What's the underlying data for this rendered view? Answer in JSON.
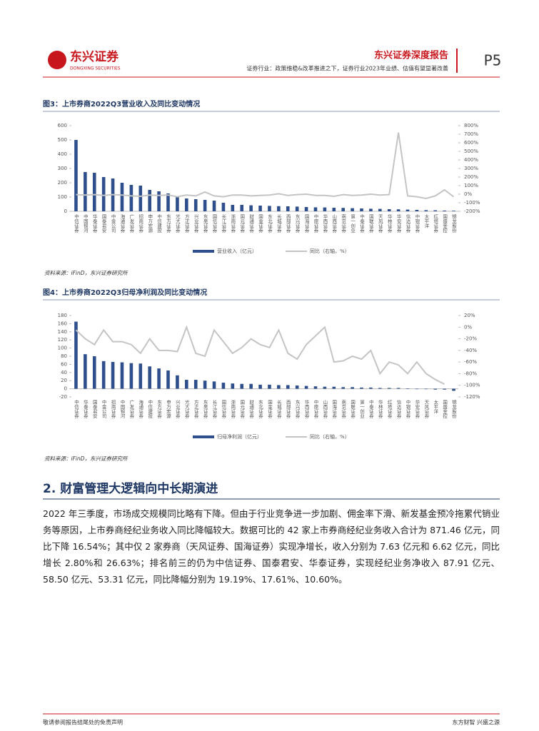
{
  "header": {
    "logo_cn": "东兴证券",
    "logo_en": "DONGXING SECURITIES",
    "report_type": "东兴证券深度报告",
    "subtitle": "证券行业：政策维稳&改革推进之下，证券行业2023年业绩、估值有望显著改善",
    "page": "P5"
  },
  "chart_data": [
    {
      "type": "bar_line",
      "title": "图3：上市券商2022Q3营业收入及同比变动情况",
      "source": "资料来源：iFinD，东兴证券研究所",
      "categories": [
        "中信证券",
        "中国银河",
        "华泰证券",
        "国泰君安",
        "中金公司",
        "海通证券",
        "广发证券",
        "招商证券",
        "申万宏源",
        "中信建投",
        "东方证券",
        "光大证券",
        "方正证券",
        "兴业证券",
        "东吴证券",
        "国信证券",
        "长江证券",
        "浙商证券",
        "国元证券",
        "财通证券",
        "国金证券",
        "东北证券",
        "长城证券",
        "西部证券",
        "东兴证券",
        "国海证券",
        "中原证券",
        "华西证券",
        "山西证券",
        "南京证券",
        "第一创业",
        "中泰证券",
        "国联证券",
        "天风证券",
        "华林证券",
        "华安证券",
        "信达证券",
        "中银证券",
        "太平洋",
        "红塔证券",
        "国盛金控",
        "锦龙股份"
      ],
      "series": [
        {
          "name": "营业收入（亿元）",
          "color": "#2f4f8c",
          "values": [
            500,
            275,
            270,
            240,
            230,
            200,
            185,
            180,
            150,
            140,
            125,
            100,
            90,
            85,
            80,
            75,
            60,
            45,
            45,
            42,
            40,
            38,
            36,
            35,
            33,
            30,
            28,
            27,
            25,
            24,
            22,
            20,
            18,
            17,
            15,
            14,
            12,
            10,
            8,
            7,
            5,
            4
          ]
        },
        {
          "name": "同比（右轴，%）",
          "color": "#c4c4c4",
          "axis": "y2",
          "values": [
            -5,
            -10,
            -5,
            -15,
            -5,
            -10,
            -20,
            -25,
            -10,
            -15,
            -10,
            -30,
            -10,
            -20,
            25,
            -20,
            -30,
            -10,
            -10,
            -20,
            -15,
            -10,
            5,
            -15,
            -5,
            0,
            -15,
            -15,
            -25,
            -5,
            -15,
            -10,
            0,
            -10,
            -5,
            720,
            -20,
            -30,
            -50,
            -20,
            50,
            -30
          ]
        }
      ],
      "ylim": [
        0,
        600
      ],
      "yticks": [
        0,
        100,
        200,
        300,
        400,
        500,
        600
      ],
      "y2lim": [
        -200,
        800
      ],
      "y2ticks": [
        {
          "value": -200,
          "label": "-200%"
        },
        {
          "value": -100,
          "label": "-100%"
        },
        {
          "value": 0,
          "label": "0%"
        },
        {
          "value": 100,
          "label": "100%"
        },
        {
          "value": 200,
          "label": "200%"
        },
        {
          "value": 300,
          "label": "300%"
        },
        {
          "value": 400,
          "label": "400%"
        },
        {
          "value": 500,
          "label": "500%"
        },
        {
          "value": 600,
          "label": "600%"
        },
        {
          "value": 700,
          "label": "700%"
        },
        {
          "value": 800,
          "label": "800%"
        }
      ]
    },
    {
      "type": "bar_line",
      "title": "图4：上市券商2022Q3归母净利润及同比变动情况",
      "source": "资料来源：iFinD，东兴证券研究所",
      "categories": [
        "中信证券",
        "华泰证券",
        "国泰君安",
        "中金公司",
        "招商证券",
        "中国银河",
        "广发证券",
        "海通证券",
        "中信建投",
        "东方证券",
        "申万宏源",
        "兴业证券",
        "光大证券",
        "方正证券",
        "东吴证券",
        "长江证券",
        "国信证券",
        "浙商证券",
        "国元证券",
        "财通证券",
        "东北证券",
        "国金证券",
        "长城证券",
        "西部证券",
        "东兴证券",
        "华西证券",
        "中原证券",
        "山西证券",
        "国海证券",
        "南京证券",
        "国联证券",
        "第一创业",
        "中泰证券",
        "华林证券",
        "红塔证券",
        "信达证券",
        "中银证券",
        "华安证券",
        "天风证券",
        "太平洋",
        "国盛金控",
        "锦龙股份"
      ],
      "series": [
        {
          "name": "归母净利润（亿元）",
          "color": "#2f4f8c",
          "values": [
            165,
            85,
            80,
            68,
            66,
            65,
            63,
            62,
            55,
            50,
            45,
            33,
            22,
            22,
            20,
            18,
            15,
            13,
            12,
            12,
            10,
            10,
            9,
            9,
            8,
            7,
            6,
            5,
            5,
            4,
            4,
            3,
            3,
            2,
            2,
            2,
            1,
            -1,
            -1,
            -2,
            -2,
            -5
          ]
        },
        {
          "name": "同比（右轴，%）",
          "color": "#c4c4c4",
          "axis": "y2",
          "values": [
            -5,
            -20,
            -30,
            -5,
            -25,
            -25,
            -30,
            -45,
            -20,
            -40,
            -40,
            -42,
            0,
            -45,
            -50,
            -5,
            -25,
            -45,
            -35,
            -20,
            -30,
            -35,
            -5,
            -45,
            -55,
            -30,
            -15,
            0,
            -60,
            -58,
            -50,
            -55,
            -40,
            -80,
            -60,
            -65,
            -80,
            -60,
            -80,
            -90,
            -98,
            null
          ]
        }
      ],
      "ylim": [
        -20,
        180
      ],
      "yticks": [
        -20,
        0,
        20,
        40,
        60,
        80,
        100,
        120,
        140,
        160,
        180
      ],
      "y2lim": [
        -120,
        20
      ],
      "y2ticks": [
        {
          "value": -120,
          "label": "-120%"
        },
        {
          "value": -100,
          "label": "-100%"
        },
        {
          "value": -80,
          "label": "-80%"
        },
        {
          "value": -60,
          "label": "-60%"
        },
        {
          "value": -40,
          "label": "-40%"
        },
        {
          "value": -20,
          "label": "-20%"
        },
        {
          "value": 0,
          "label": "0%"
        },
        {
          "value": 20,
          "label": "20%"
        }
      ]
    }
  ],
  "section": {
    "heading": "2. 财富管理大逻辑向中长期演进",
    "paragraph": "2022 年三季度，市场成交规模同比略有下降。但由于行业竞争进一步加剧、佣金率下滑、新发基金预冷拖累代销业务等原因，上市券商经纪业务收入同比降幅较大。数据可比的 42 家上市券商经纪业务收入合计为 871.46 亿元，同比下降 16.54%；其中仅 2 家券商（天风证券、国海证券）实现净增长，收入分别为 7.63 亿元和 6.62 亿元，同比增长 2.80%和 26.63%；排名前三的仍为中信证券、国泰君安、华泰证券，实现经纪业务净收入 87.91 亿元、58.50 亿元、53.31 亿元，同比降幅分别为 19.19%、17.61%、10.60%。"
  },
  "footer": {
    "left": "敬请参阅报告结尾处的免责声明",
    "right": "东方财智 兴盛之源"
  }
}
